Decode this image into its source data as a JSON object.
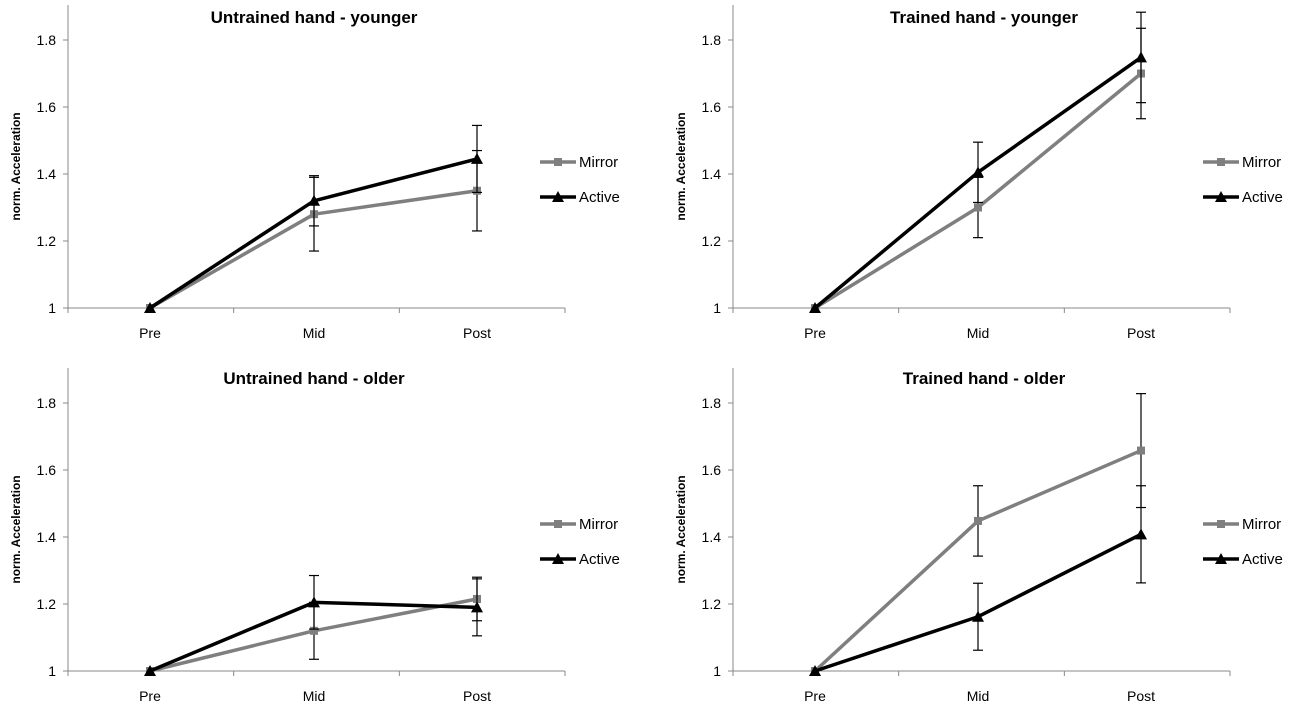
{
  "chart_data": [
    {
      "type": "line",
      "title": "Untrained hand - younger",
      "xlabel": "",
      "ylabel": "norm. Acceleration",
      "ylim": [
        1,
        1.9
      ],
      "yticks": [
        "1",
        "1.2",
        "1.4",
        "1.6",
        "1.8"
      ],
      "ytick_values": [
        1,
        1.2,
        1.4,
        1.6,
        1.8
      ],
      "categories": [
        "Pre",
        "Mid",
        "Post"
      ],
      "legend_position": "right",
      "series": [
        {
          "name": "Mirror",
          "color": "#7f7f7f",
          "marker": "square",
          "values": [
            1.0,
            1.28,
            1.35
          ],
          "error": [
            0,
            0.11,
            0.12
          ]
        },
        {
          "name": "Active",
          "color": "#000000",
          "marker": "triangle",
          "values": [
            1.0,
            1.32,
            1.445
          ],
          "error": [
            0,
            0.075,
            0.1
          ]
        }
      ]
    },
    {
      "type": "line",
      "title": "Trained hand - younger",
      "xlabel": "",
      "ylabel": "norm. Acceleration",
      "ylim": [
        1,
        1.9
      ],
      "yticks": [
        "1",
        "1.2",
        "1.4",
        "1.6",
        "1.8"
      ],
      "ytick_values": [
        1,
        1.2,
        1.4,
        1.6,
        1.8
      ],
      "categories": [
        "Pre",
        "Mid",
        "Post"
      ],
      "legend_position": "right",
      "series": [
        {
          "name": "Mirror",
          "color": "#7f7f7f",
          "marker": "square",
          "values": [
            1.0,
            1.3,
            1.7
          ],
          "error": [
            0,
            0.09,
            0.135
          ]
        },
        {
          "name": "Active",
          "color": "#000000",
          "marker": "triangle",
          "values": [
            1.0,
            1.405,
            1.748
          ],
          "error": [
            0,
            0.09,
            0.135
          ]
        }
      ]
    },
    {
      "type": "line",
      "title": "Untrained hand - older",
      "xlabel": "",
      "ylabel": "norm. Acceleration",
      "ylim": [
        1,
        1.9
      ],
      "yticks": [
        "1",
        "1.2",
        "1.4",
        "1.6",
        "1.8"
      ],
      "ytick_values": [
        1,
        1.2,
        1.4,
        1.6,
        1.8
      ],
      "categories": [
        "Pre",
        "Mid",
        "Post"
      ],
      "legend_position": "right",
      "series": [
        {
          "name": "Mirror",
          "color": "#7f7f7f",
          "marker": "square",
          "values": [
            1.0,
            1.12,
            1.215
          ],
          "error": [
            0,
            0.085,
            0.065
          ]
        },
        {
          "name": "Active",
          "color": "#000000",
          "marker": "triangle",
          "values": [
            1.0,
            1.205,
            1.19
          ],
          "error": [
            0,
            0.08,
            0.085
          ]
        }
      ]
    },
    {
      "type": "line",
      "title": "Trained hand - older",
      "xlabel": "",
      "ylabel": "norm. Acceleration",
      "ylim": [
        1,
        1.9
      ],
      "yticks": [
        "1",
        "1.2",
        "1.4",
        "1.6",
        "1.8"
      ],
      "ytick_values": [
        1,
        1.2,
        1.4,
        1.6,
        1.8
      ],
      "categories": [
        "Pre",
        "Mid",
        "Post"
      ],
      "legend_position": "right",
      "series": [
        {
          "name": "Mirror",
          "color": "#7f7f7f",
          "marker": "square",
          "values": [
            1.0,
            1.448,
            1.658
          ],
          "error": [
            0,
            0.105,
            0.17
          ]
        },
        {
          "name": "Active",
          "color": "#000000",
          "marker": "triangle",
          "values": [
            1.0,
            1.162,
            1.408
          ],
          "error": [
            0,
            0.1,
            0.145
          ]
        }
      ]
    }
  ]
}
